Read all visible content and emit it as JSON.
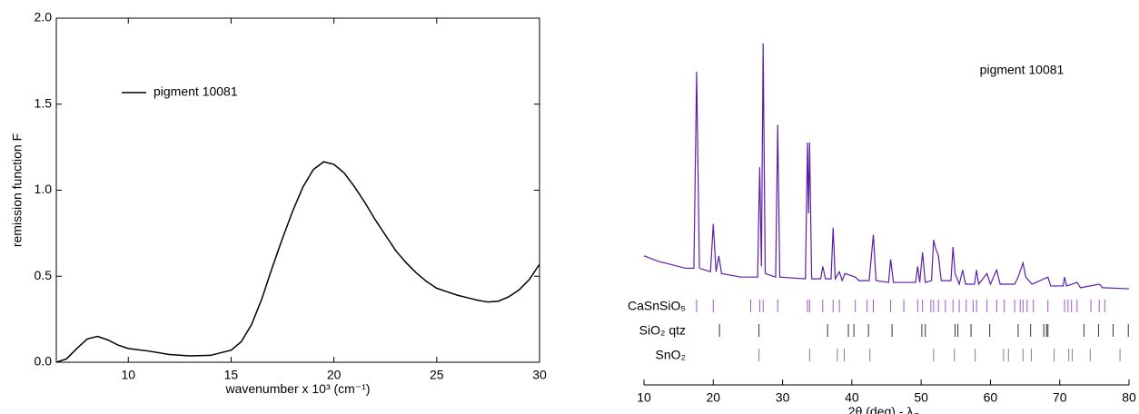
{
  "chart_data": [
    {
      "type": "line",
      "ylabel": "remission function F",
      "xlabel": "wavenumber x 10³ (cm⁻¹)",
      "xlim": [
        6.5,
        30
      ],
      "ylim": [
        0,
        2
      ],
      "xticks": [
        10,
        15,
        20,
        25,
        30
      ],
      "yticks": [
        {
          "value": 0,
          "label": "0.0"
        },
        {
          "value": 0.5,
          "label": "0.5"
        },
        {
          "value": 1,
          "label": "1.0"
        },
        {
          "value": 1.5,
          "label": "1.5"
        },
        {
          "value": 2,
          "label": "2.0"
        }
      ],
      "legend": "upper-left",
      "x": [
        6.5,
        7,
        7.5,
        8,
        8.5,
        9,
        9.5,
        10,
        11,
        12,
        13,
        14,
        15,
        15.5,
        16,
        16.5,
        17,
        17.5,
        18,
        18.5,
        19,
        19.5,
        20,
        20.5,
        21,
        21.5,
        22,
        22.5,
        23,
        23.5,
        24,
        24.5,
        25,
        25.5,
        26,
        26.5,
        27,
        27.5,
        28,
        28.5,
        29,
        29.5,
        30
      ],
      "series": [
        {
          "name": "pigment 10081",
          "color": "#000000",
          "values": [
            0,
            0.02,
            0.08,
            0.135,
            0.15,
            0.13,
            0.1,
            0.08,
            0.065,
            0.045,
            0.037,
            0.04,
            0.07,
            0.12,
            0.22,
            0.37,
            0.55,
            0.72,
            0.88,
            1.02,
            1.12,
            1.165,
            1.15,
            1.1,
            1.02,
            0.93,
            0.83,
            0.74,
            0.65,
            0.58,
            0.52,
            0.47,
            0.43,
            0.41,
            0.39,
            0.375,
            0.36,
            0.35,
            0.355,
            0.38,
            0.42,
            0.48,
            0.57
          ]
        }
      ]
    },
    {
      "type": "line",
      "annotation": "pigment 10081",
      "xlabel": "2θ (deg) - λ",
      "xlabel_sub": "Cu",
      "xlim": [
        10,
        80
      ],
      "ylim": [
        0,
        100
      ],
      "xticks": [
        10,
        20,
        30,
        40,
        50,
        60,
        70,
        80
      ],
      "x": [
        10,
        12,
        14,
        16,
        17.2,
        17.6,
        18,
        19.6,
        20,
        20.4,
        20.8,
        21.2,
        24,
        26.4,
        26.7,
        26.95,
        27.2,
        27.5,
        29,
        29.3,
        29.6,
        33.3,
        33.6,
        33.75,
        33.9,
        34.2,
        35.5,
        35.8,
        36.2,
        37,
        37.3,
        37.6,
        38.2,
        38.6,
        39,
        40.5,
        41,
        42.5,
        43.1,
        43.5,
        45.3,
        45.6,
        46,
        49.2,
        49.5,
        49.8,
        50.2,
        50.6,
        51.5,
        51.8,
        52.1,
        52.5,
        52.9,
        54.3,
        54.6,
        54.9,
        55.5,
        56,
        56.4,
        57.7,
        58,
        58.3,
        59.5,
        60,
        60.9,
        61.4,
        63.5,
        64,
        64.7,
        65.1,
        66,
        68.3,
        68.7,
        70.5,
        70.7,
        71,
        72.5,
        73,
        75.7,
        76.2,
        80
      ],
      "series": [
        {
          "color": "#5b1fa6",
          "values": [
            38,
            36.5,
            35.5,
            34.5,
            34.5,
            90,
            34.5,
            33.5,
            47,
            33.5,
            38,
            33,
            32,
            32,
            63,
            35,
            98,
            33,
            32,
            75,
            32,
            31.5,
            70,
            50,
            70,
            31.5,
            31.5,
            35,
            31.5,
            31.5,
            46,
            31.5,
            33.5,
            31,
            33,
            32,
            31,
            31,
            44,
            31,
            30.5,
            37,
            30.5,
            30.5,
            35,
            30.5,
            39,
            30.5,
            31,
            42.5,
            40,
            38,
            31,
            31,
            40.5,
            33,
            30,
            34,
            30,
            30,
            34,
            30,
            33,
            30,
            34,
            30,
            30,
            32,
            36,
            32,
            30,
            32,
            29.5,
            29.5,
            32,
            29.5,
            30.5,
            29,
            30,
            29,
            28.7
          ]
        }
      ],
      "reflections": [
        {
          "name": "CaSnSiO₅",
          "color": "#9b59d0",
          "positions": [
            17.6,
            20,
            25.4,
            26.7,
            27.2,
            29.3,
            33.6,
            33.9,
            35.8,
            37.3,
            38.2,
            40.5,
            42.2,
            43.1,
            45.6,
            47.5,
            49.5,
            50.2,
            51.4,
            51.8,
            52.5,
            53.5,
            54.6,
            55.5,
            56.5,
            57.5,
            58,
            59.5,
            60.9,
            62,
            63.5,
            64.3,
            64.7,
            65.3,
            66.2,
            68.3,
            70.7,
            71.2,
            71.7,
            72.5,
            74.5,
            75.7,
            76.5
          ]
        },
        {
          "name": "SiO₂ qtz",
          "color": "#333333",
          "positions": [
            20.9,
            26.6,
            36.5,
            39.5,
            40.3,
            42.4,
            45.8,
            50.1,
            50.6,
            54.9,
            55.3,
            57.2,
            59.9,
            64,
            65.8,
            67.7,
            68.1,
            68.3,
            73.5,
            75.6,
            77.7,
            79.9
          ]
        },
        {
          "name": "SnO₂",
          "color": "#808080",
          "positions": [
            26.6,
            33.9,
            37.9,
            38.9,
            42.6,
            51.8,
            54.8,
            57.8,
            61.9,
            62.6,
            64.7,
            65.9,
            69.2,
            71.3,
            71.8,
            74.4,
            78.7
          ]
        }
      ]
    }
  ]
}
